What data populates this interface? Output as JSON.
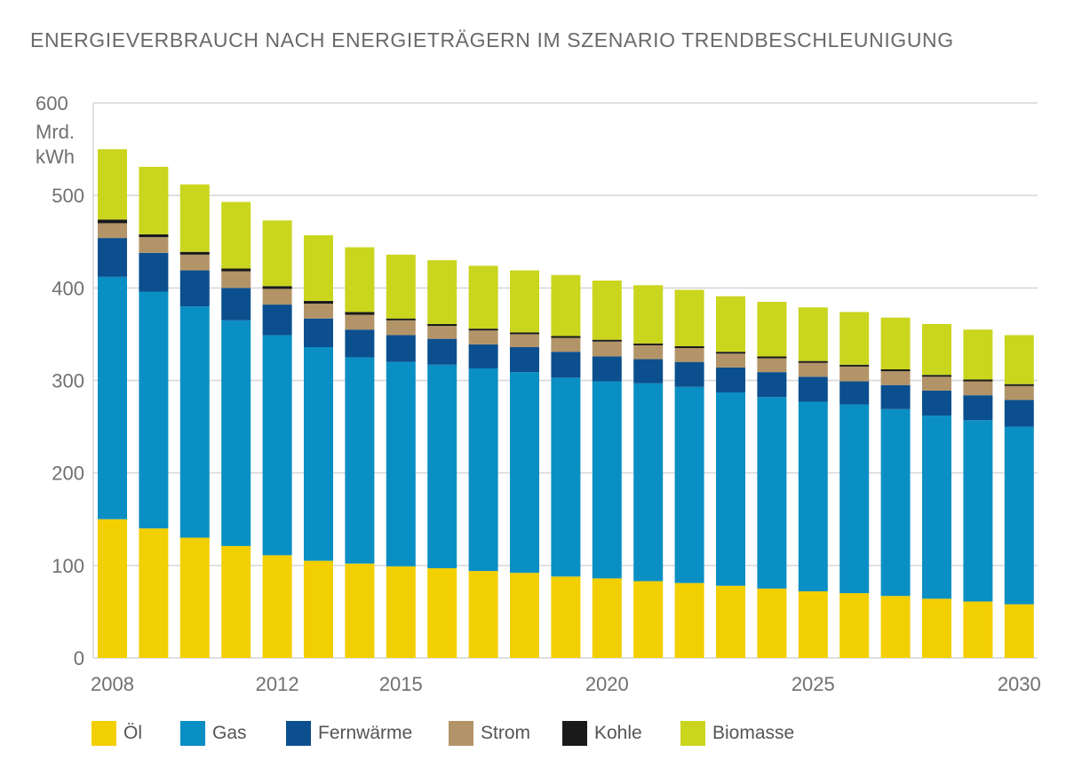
{
  "chart_data": {
    "type": "bar",
    "stacked": true,
    "title": "ENERGIEVERBRAUCH NACH ENERGIETRÄGERN IM SZENARIO TRENDBESCHLEUNIGUNG",
    "ylabel": "Mrd. kWh",
    "ylabel_lines": [
      "Mrd.",
      "kWh"
    ],
    "xlabel": "",
    "ylim": [
      0,
      600
    ],
    "yticks": [
      "0",
      "100",
      "200",
      "300",
      "400",
      "500",
      "600"
    ],
    "xtick_labels": [
      "2008",
      "2012",
      "2015",
      "2020",
      "2025",
      "2030"
    ],
    "grid": true,
    "legend_position": "bottom",
    "categories": [
      2008,
      2009,
      2010,
      2011,
      2012,
      2013,
      2014,
      2015,
      2016,
      2017,
      2018,
      2019,
      2020,
      2021,
      2022,
      2023,
      2024,
      2025,
      2026,
      2027,
      2028,
      2029,
      2030
    ],
    "series": [
      {
        "name": "Öl",
        "color": "#f2cf00",
        "values": [
          150,
          140,
          130,
          121,
          111,
          105,
          102,
          99,
          97,
          94,
          92,
          88,
          86,
          83,
          81,
          78,
          75,
          72,
          70,
          67,
          64,
          61,
          58
        ]
      },
      {
        "name": "Gas",
        "color": "#0a8fc4",
        "values": [
          262,
          256,
          250,
          244,
          238,
          231,
          223,
          221,
          220,
          219,
          217,
          215,
          213,
          214,
          212,
          209,
          207,
          205,
          204,
          202,
          198,
          196,
          192
        ]
      },
      {
        "name": "Fernwärme",
        "color": "#0b4f8e",
        "values": [
          42,
          42,
          39,
          35,
          33,
          31,
          30,
          29,
          28,
          26,
          27,
          28,
          27,
          26,
          27,
          27,
          27,
          27,
          25,
          26,
          27,
          27,
          29
        ]
      },
      {
        "name": "Strom",
        "color": "#b39468",
        "values": [
          16,
          17,
          17,
          18,
          17,
          16,
          16,
          16,
          14,
          15,
          14,
          15,
          16,
          15,
          15,
          15,
          15,
          15,
          16,
          15,
          15,
          15,
          15
        ]
      },
      {
        "name": "Kohle",
        "color": "#1a1a1a",
        "values": [
          4,
          3,
          3,
          3,
          3,
          3,
          3,
          2,
          2,
          2,
          2,
          2,
          2,
          2,
          2,
          2,
          2,
          2,
          2,
          2,
          2,
          2,
          2
        ]
      },
      {
        "name": "Biomasse",
        "color": "#cad51e",
        "values": [
          76,
          73,
          73,
          72,
          71,
          71,
          70,
          69,
          69,
          68,
          67,
          66,
          64,
          63,
          61,
          60,
          59,
          58,
          57,
          56,
          55,
          54,
          53
        ]
      }
    ]
  }
}
